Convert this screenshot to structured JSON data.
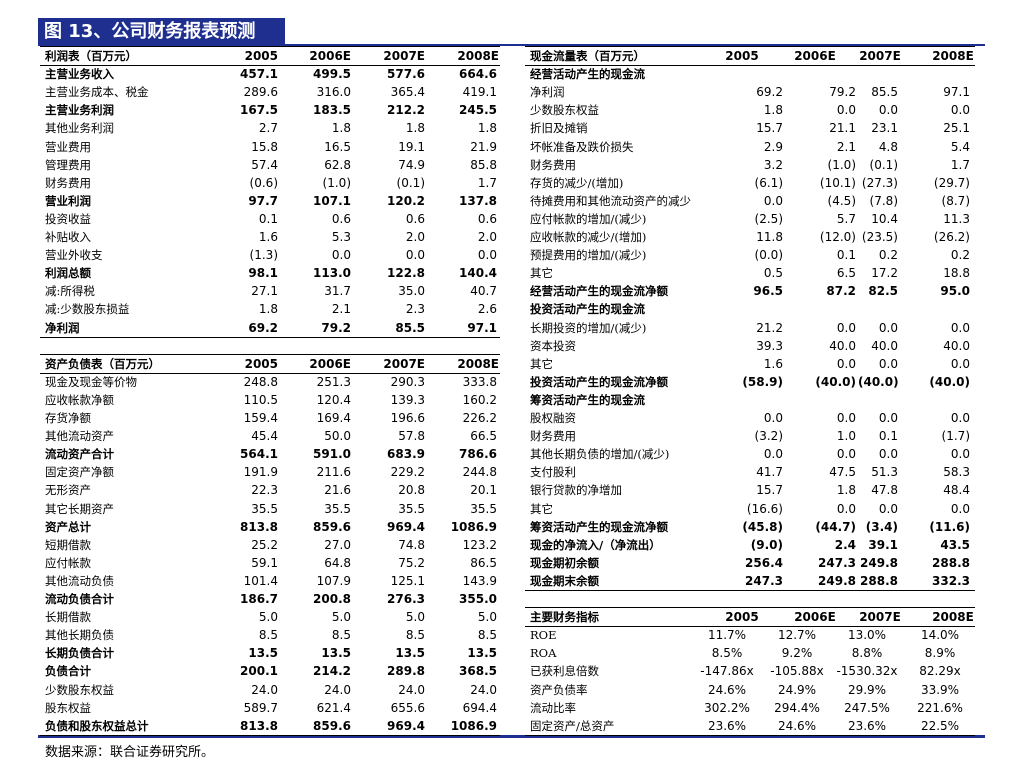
{
  "title": "图 13、公司财务报表预测",
  "source": "数据来源：联合证券研究所。",
  "income": {
    "header": [
      "利润表（百万元）",
      "2005",
      "2006E",
      "2007E",
      "2008E"
    ],
    "rows": [
      {
        "label": "主营业务收入",
        "values": [
          "457.1",
          "499.5",
          "577.6",
          "664.6"
        ],
        "bold": true
      },
      {
        "label": "主营业务成本、税金",
        "values": [
          "289.6",
          "316.0",
          "365.4",
          "419.1"
        ]
      },
      {
        "label": "主营业务利润",
        "values": [
          "167.5",
          "183.5",
          "212.2",
          "245.5"
        ],
        "bold": true
      },
      {
        "label": "其他业务利润",
        "values": [
          "2.7",
          "1.8",
          "1.8",
          "1.8"
        ]
      },
      {
        "label": "营业费用",
        "values": [
          "15.8",
          "16.5",
          "19.1",
          "21.9"
        ]
      },
      {
        "label": "管理费用",
        "values": [
          "57.4",
          "62.8",
          "74.9",
          "85.8"
        ]
      },
      {
        "label": "财务费用",
        "values": [
          "(0.6)",
          "(1.0)",
          "(0.1)",
          "1.7"
        ]
      },
      {
        "label": "营业利润",
        "values": [
          "97.7",
          "107.1",
          "120.2",
          "137.8"
        ],
        "bold": true
      },
      {
        "label": "投资收益",
        "values": [
          "0.1",
          "0.6",
          "0.6",
          "0.6"
        ]
      },
      {
        "label": "补贴收入",
        "values": [
          "1.6",
          "5.3",
          "2.0",
          "2.0"
        ]
      },
      {
        "label": "营业外收支",
        "values": [
          "(1.3)",
          "0.0",
          "0.0",
          "0.0"
        ]
      },
      {
        "label": "利润总额",
        "values": [
          "98.1",
          "113.0",
          "122.8",
          "140.4"
        ],
        "bold": true
      },
      {
        "label": "减:所得税",
        "values": [
          "27.1",
          "31.7",
          "35.0",
          "40.7"
        ]
      },
      {
        "label": "减:少数股东损益",
        "values": [
          "1.8",
          "2.1",
          "2.3",
          "2.6"
        ]
      },
      {
        "label": "净利润",
        "values": [
          "69.2",
          "79.2",
          "85.5",
          "97.1"
        ],
        "bold": true
      }
    ]
  },
  "balance": {
    "header": [
      "资产负债表（百万元）",
      "2005",
      "2006E",
      "2007E",
      "2008E"
    ],
    "rows": [
      {
        "label": "现金及现金等价物",
        "values": [
          "248.8",
          "251.3",
          "290.3",
          "333.8"
        ]
      },
      {
        "label": "应收帐款净额",
        "values": [
          "110.5",
          "120.4",
          "139.3",
          "160.2"
        ]
      },
      {
        "label": "存货净额",
        "values": [
          "159.4",
          "169.4",
          "196.6",
          "226.2"
        ]
      },
      {
        "label": "其他流动资产",
        "values": [
          "45.4",
          "50.0",
          "57.8",
          "66.5"
        ]
      },
      {
        "label": "流动资产合计",
        "values": [
          "564.1",
          "591.0",
          "683.9",
          "786.6"
        ],
        "bold": true
      },
      {
        "label": "固定资产净额",
        "values": [
          "191.9",
          "211.6",
          "229.2",
          "244.8"
        ]
      },
      {
        "label": "无形资产",
        "values": [
          "22.3",
          "21.6",
          "20.8",
          "20.1"
        ]
      },
      {
        "label": "其它长期资产",
        "values": [
          "35.5",
          "35.5",
          "35.5",
          "35.5"
        ]
      },
      {
        "label": "资产总计",
        "values": [
          "813.8",
          "859.6",
          "969.4",
          "1086.9"
        ],
        "bold": true
      },
      {
        "label": "短期借款",
        "values": [
          "25.2",
          "27.0",
          "74.8",
          "123.2"
        ]
      },
      {
        "label": "应付帐款",
        "values": [
          "59.1",
          "64.8",
          "75.2",
          "86.5"
        ]
      },
      {
        "label": "其他流动负债",
        "values": [
          "101.4",
          "107.9",
          "125.1",
          "143.9"
        ]
      },
      {
        "label": "流动负债合计",
        "values": [
          "186.7",
          "200.8",
          "276.3",
          "355.0"
        ],
        "bold": true
      },
      {
        "label": "长期借款",
        "values": [
          "5.0",
          "5.0",
          "5.0",
          "5.0"
        ]
      },
      {
        "label": "其他长期负债",
        "values": [
          "8.5",
          "8.5",
          "8.5",
          "8.5"
        ]
      },
      {
        "label": "长期负债合计",
        "values": [
          "13.5",
          "13.5",
          "13.5",
          "13.5"
        ],
        "bold": true
      },
      {
        "label": "负债合计",
        "values": [
          "200.1",
          "214.2",
          "289.8",
          "368.5"
        ],
        "bold": true
      },
      {
        "label": "少数股东权益",
        "values": [
          "24.0",
          "24.0",
          "24.0",
          "24.0"
        ]
      },
      {
        "label": "股东权益",
        "values": [
          "589.7",
          "621.4",
          "655.6",
          "694.4"
        ]
      },
      {
        "label": "负债和股东权益总计",
        "values": [
          "813.8",
          "859.6",
          "969.4",
          "1086.9"
        ],
        "bold": true
      }
    ]
  },
  "cashflow": {
    "header": [
      "现金流量表（百万元）",
      "2005",
      "2006E",
      "2007E",
      "2008E"
    ],
    "rows": [
      {
        "label": "经营活动产生的现金流",
        "bold": true
      },
      {
        "label": "净利润",
        "values": [
          "69.2",
          "79.2",
          "85.5",
          "97.1"
        ]
      },
      {
        "label": "少数股东权益",
        "values": [
          "1.8",
          "0.0",
          "0.0",
          "0.0"
        ]
      },
      {
        "label": "折旧及摊销",
        "values": [
          "15.7",
          "21.1",
          "23.1",
          "25.1"
        ]
      },
      {
        "label": "坏帐准备及跌价损失",
        "values": [
          "2.9",
          "2.1",
          "4.8",
          "5.4"
        ]
      },
      {
        "label": "财务费用",
        "values": [
          "3.2",
          "(1.0)",
          "(0.1)",
          "1.7"
        ]
      },
      {
        "label": "存货的减少/(增加)",
        "values": [
          "(6.1)",
          "(10.1)",
          "(27.3)",
          "(29.7)"
        ]
      },
      {
        "label": "待摊费用和其他流动资产的减少",
        "values": [
          "0.0",
          "(4.5)",
          "(7.8)",
          "(8.7)"
        ]
      },
      {
        "label": "应付帐款的增加/(减少)",
        "values": [
          "(2.5)",
          "5.7",
          "10.4",
          "11.3"
        ]
      },
      {
        "label": "应收帐款的减少/(增加)",
        "values": [
          "11.8",
          "(12.0)",
          "(23.5)",
          "(26.2)"
        ]
      },
      {
        "label": "预提费用的增加/(减少)",
        "values": [
          "(0.0)",
          "0.1",
          "0.2",
          "0.2"
        ]
      },
      {
        "label": "其它",
        "values": [
          "0.5",
          "6.5",
          "17.2",
          "18.8"
        ]
      },
      {
        "label": "经营活动产生的现金流净额",
        "values": [
          "96.5",
          "87.2",
          "82.5",
          "95.0"
        ],
        "bold": true
      },
      {
        "label": "投资活动产生的现金流",
        "bold": true
      },
      {
        "label": "长期投资的增加/(减少)",
        "values": [
          "21.2",
          "0.0",
          "0.0",
          "0.0"
        ]
      },
      {
        "label": "资本投资",
        "values": [
          "39.3",
          "40.0",
          "40.0",
          "40.0"
        ]
      },
      {
        "label": "其它",
        "values": [
          "1.6",
          "0.0",
          "0.0",
          "0.0"
        ]
      },
      {
        "label": "投资活动产生的现金流净额",
        "values": [
          "(58.9)",
          "(40.0)",
          "(40.0)",
          "(40.0)"
        ],
        "bold": true
      },
      {
        "label": "筹资活动产生的现金流",
        "bold": true
      },
      {
        "label": "股权融资",
        "values": [
          "0.0",
          "0.0",
          "0.0",
          "0.0"
        ]
      },
      {
        "label": "财务费用",
        "values": [
          "(3.2)",
          "1.0",
          "0.1",
          "(1.7)"
        ]
      },
      {
        "label": "其他长期负债的增加/(减少)",
        "values": [
          "0.0",
          "0.0",
          "0.0",
          "0.0"
        ]
      },
      {
        "label": "支付股利",
        "values": [
          "41.7",
          "47.5",
          "51.3",
          "58.3"
        ]
      },
      {
        "label": "银行贷款的净增加",
        "values": [
          "15.7",
          "1.8",
          "47.8",
          "48.4"
        ]
      },
      {
        "label": "其它",
        "values": [
          "(16.6)",
          "0.0",
          "0.0",
          "0.0"
        ]
      },
      {
        "label": "筹资活动产生的现金流净额",
        "values": [
          "(45.8)",
          "(44.7)",
          "(3.4)",
          "(11.6)"
        ],
        "bold": true
      },
      {
        "label": "现金的净流入/（净流出）",
        "values": [
          "(9.0)",
          "2.4",
          "39.1",
          "43.5"
        ],
        "bold": true
      },
      {
        "label": "现金期初余额",
        "values": [
          "256.4",
          "247.3",
          "249.8",
          "288.8"
        ],
        "bold": true
      },
      {
        "label": "现金期末余额",
        "values": [
          "247.3",
          "249.8",
          "288.8",
          "332.3"
        ],
        "bold": true
      }
    ]
  },
  "ratios": {
    "header": [
      "主要财务指标",
      "2005",
      "2006E",
      "2007E",
      "2008E"
    ],
    "rows": [
      {
        "label": "ROE",
        "values": [
          "11.7%",
          "12.7%",
          "13.0%",
          "14.0%"
        ]
      },
      {
        "label": "ROA",
        "values": [
          "8.5%",
          "9.2%",
          "8.8%",
          "8.9%"
        ]
      },
      {
        "label": "已获利息倍数",
        "values": [
          "-147.86x",
          "-105.88x",
          "-1530.32x",
          "82.29x"
        ]
      },
      {
        "label": "资产负债率",
        "values": [
          "24.6%",
          "24.9%",
          "29.9%",
          "33.9%"
        ]
      },
      {
        "label": "流动比率",
        "values": [
          "302.2%",
          "294.4%",
          "247.5%",
          "221.6%"
        ]
      },
      {
        "label": "固定资产/总资产",
        "values": [
          "23.6%",
          "24.6%",
          "23.6%",
          "22.5%"
        ]
      }
    ]
  }
}
